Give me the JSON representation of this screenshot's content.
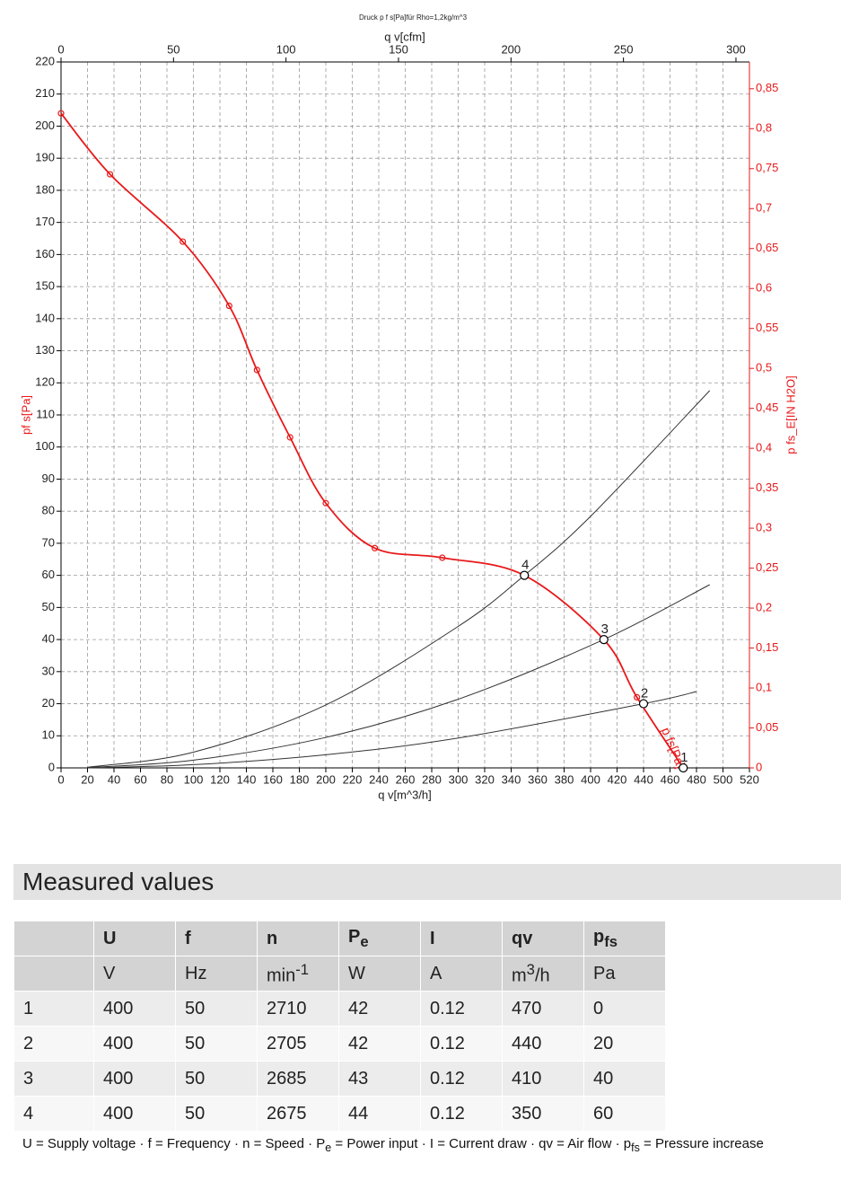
{
  "chart_data": {
    "type": "line",
    "title": "Druck p f s[Pa]für Rho=1,2kg/m^3",
    "xlabel": "q v[m^3/h]",
    "x2label": "q v[cfm]",
    "ylabel": "pf s[Pa]",
    "y2label": "p fs_E[IN H2O]",
    "xlim": [
      0,
      520
    ],
    "xticks": [
      0,
      20,
      40,
      60,
      80,
      100,
      120,
      140,
      160,
      180,
      200,
      220,
      240,
      260,
      280,
      300,
      320,
      340,
      360,
      380,
      400,
      420,
      440,
      460,
      480,
      500,
      520
    ],
    "x2lim": [
      0,
      306
    ],
    "x2ticks": [
      0,
      50,
      100,
      150,
      200,
      250,
      300
    ],
    "ylim": [
      0,
      220
    ],
    "yticks": [
      0,
      10,
      20,
      30,
      40,
      50,
      60,
      70,
      80,
      90,
      100,
      110,
      120,
      130,
      140,
      150,
      160,
      170,
      180,
      190,
      200,
      210,
      220
    ],
    "y2lim": [
      0,
      0.8835
    ],
    "y2ticks": [
      0,
      {
        "value": 0.05,
        "label": "0,05"
      },
      {
        "value": 0.1,
        "label": "0,1"
      },
      {
        "value": 0.15,
        "label": "0,15"
      },
      {
        "value": 0.2,
        "label": "0,2"
      },
      {
        "value": 0.25,
        "label": "0,25"
      },
      {
        "value": 0.3,
        "label": "0,3"
      },
      {
        "value": 0.35,
        "label": "0,35"
      },
      {
        "value": 0.4,
        "label": "0,4"
      },
      {
        "value": 0.45,
        "label": "0,45"
      },
      {
        "value": 0.5,
        "label": "0,5"
      },
      {
        "value": 0.55,
        "label": "0,55"
      },
      {
        "value": 0.6,
        "label": "0,6"
      },
      {
        "value": 0.65,
        "label": "0,65"
      },
      {
        "value": 0.7,
        "label": "0,7"
      },
      {
        "value": 0.75,
        "label": "0,75"
      },
      {
        "value": 0.8,
        "label": "0,8"
      },
      {
        "value": 0.85,
        "label": "0,85"
      }
    ],
    "grid": true,
    "series": [
      {
        "name": "p fs[Pa]",
        "color": "#e8191a",
        "markers": true,
        "x": [
          0,
          37,
          92,
          127,
          148,
          173,
          200,
          237,
          288,
          350,
          410,
          435,
          470
        ],
        "values": [
          204,
          185,
          164,
          144,
          124,
          103,
          82.5,
          68.5,
          65.5,
          60,
          40,
          22,
          0
        ]
      },
      {
        "color": "#333333",
        "markers": false,
        "x": [
          20,
          100,
          200,
          300,
          350,
          400,
          490
        ],
        "values": [
          0.2,
          4.9,
          19.6,
          44.1,
          60,
          78.4,
          117.6
        ]
      },
      {
        "color": "#333333",
        "markers": false,
        "x": [
          20,
          100,
          200,
          300,
          410,
          490
        ],
        "values": [
          0.1,
          2.4,
          9.5,
          21.4,
          40,
          57.1
        ]
      },
      {
        "color": "#333333",
        "markers": false,
        "x": [
          20,
          100,
          200,
          300,
          440,
          480
        ],
        "values": [
          0,
          1,
          4.1,
          9.3,
          20,
          23.8
        ]
      }
    ],
    "operating_points": {
      "x": [
        470,
        440,
        410,
        350
      ],
      "values": [
        0,
        20,
        40,
        60
      ],
      "labels": [
        "1",
        "2",
        "3",
        "4"
      ]
    }
  },
  "table": {
    "title": "Measured values",
    "headers": [
      {
        "text": "U"
      },
      {
        "text": "f"
      },
      {
        "text": "n"
      },
      {
        "text": "P",
        "sub": "e"
      },
      {
        "text": "I"
      },
      {
        "text": "qv"
      },
      {
        "text": "p",
        "sub": "fs"
      }
    ],
    "units": [
      {
        "text": "V"
      },
      {
        "text": "Hz"
      },
      {
        "text": "min",
        "sup": "-1"
      },
      {
        "text": "W"
      },
      {
        "text": "A"
      },
      {
        "text": "m",
        "sup": "3",
        "after": "/h"
      },
      {
        "text": "Pa"
      }
    ],
    "rows": [
      [
        1,
        400,
        50,
        2710,
        42,
        0.12,
        470,
        0
      ],
      [
        2,
        400,
        50,
        2705,
        42,
        0.12,
        440,
        20
      ],
      [
        3,
        400,
        50,
        2685,
        43,
        0.12,
        410,
        40
      ],
      [
        4,
        400,
        50,
        2675,
        44,
        0.12,
        350,
        60
      ]
    ],
    "footnote": [
      "U = Supply voltage · f = Frequency · n = Speed · P",
      "e",
      " = Power input · I = Current draw · qv = Air flow · p",
      "fs",
      " = Pressure increase"
    ]
  }
}
